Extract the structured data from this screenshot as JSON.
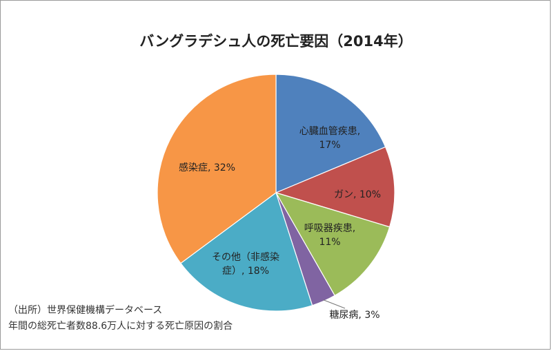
{
  "chart_data": {
    "type": "pie",
    "title": "バングラデシュ人の死亡要因（2014年）",
    "slices": [
      {
        "label": "心臓血管疾患",
        "value": 17,
        "color": "#4f81bd"
      },
      {
        "label": "ガン",
        "value": 10,
        "color": "#c0504d"
      },
      {
        "label": "呼吸器疾患",
        "value": 11,
        "color": "#9bbb59"
      },
      {
        "label": "糖尿病",
        "value": 3,
        "color": "#8064a2"
      },
      {
        "label": "その他（非感染症）",
        "value": 18,
        "color": "#4bacc6"
      },
      {
        "label": "感染症",
        "value": 32,
        "color": "#f79646"
      }
    ],
    "data_labels": [
      {
        "lines": [
          "心臓血管疾患,",
          "17%"
        ]
      },
      {
        "lines": [
          "ガン, 10%"
        ]
      },
      {
        "lines": [
          "呼吸器疾患,",
          "11%"
        ]
      },
      {
        "lines": [
          "糖尿病, 3%"
        ]
      },
      {
        "lines": [
          "その他（非感染",
          "症）, 18%"
        ]
      },
      {
        "lines": [
          "感染症, 32%"
        ]
      }
    ]
  },
  "source": {
    "line1": "（出所）世界保健機構データベース",
    "line2": "年間の総死亡者数88.6万人に対する死亡原因の割合"
  }
}
